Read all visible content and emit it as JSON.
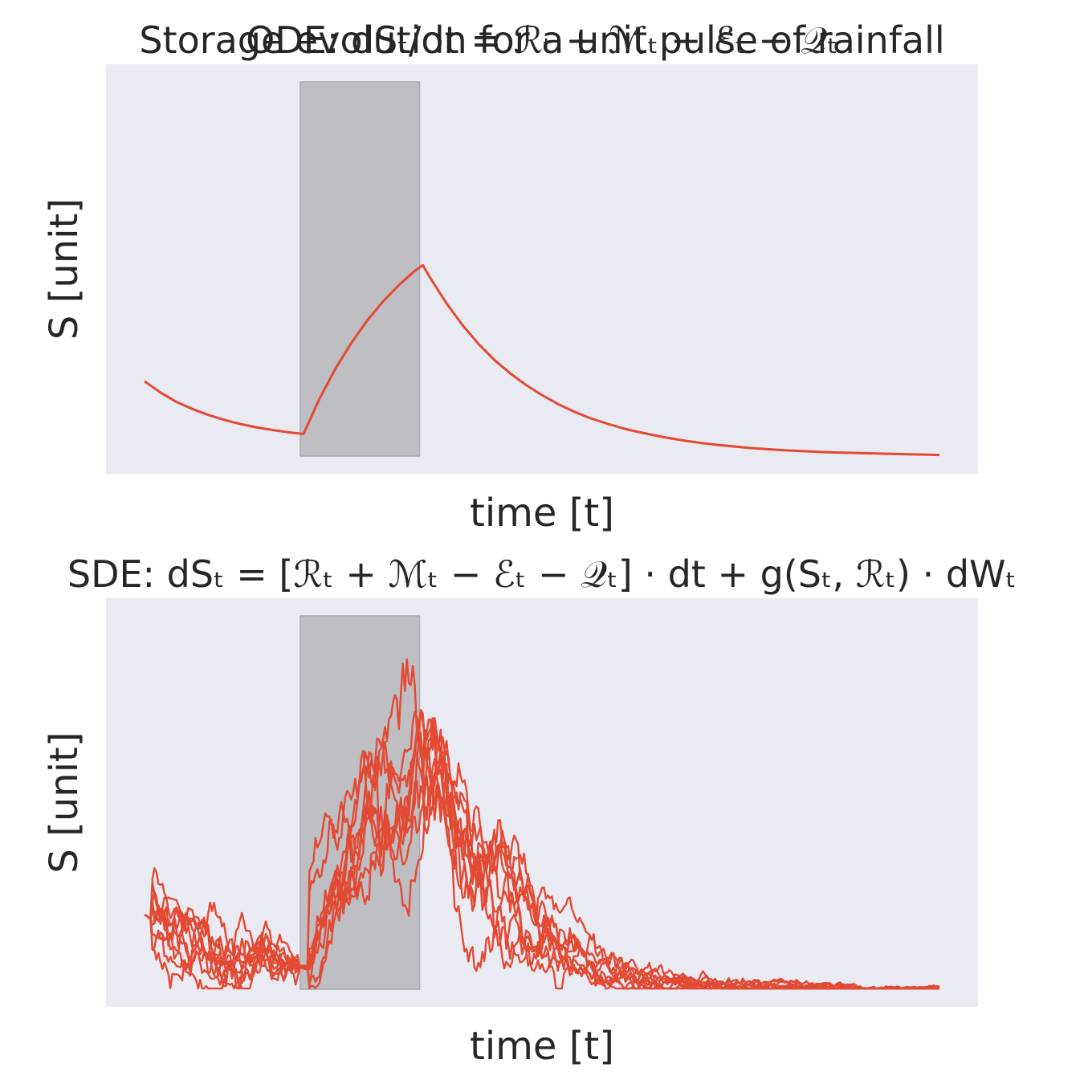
{
  "figure": {
    "suptitle": "Storage evolution for a unit pulse of rainfall",
    "background": "#ffffff",
    "axes_background": "#eaeaf2",
    "line_color": "#e24a33",
    "pulse_color": "#bebec3"
  },
  "chart_data": [
    {
      "type": "line",
      "title": "ODE: dSₜ/dt = ℛₜ + ℳₜ − ℰₜ − 𝒬ₜ",
      "xlabel": "time [t]",
      "ylabel": "S [unit]",
      "xlim": [
        0,
        100
      ],
      "ylim": [
        0,
        1.05
      ],
      "grid": false,
      "pulse": {
        "start": 20,
        "end": 35,
        "height": 1.0
      },
      "series": [
        {
          "x": [
            0,
            2,
            4,
            6,
            8,
            10,
            12,
            14,
            16,
            18,
            20,
            22,
            24,
            26,
            28,
            30,
            32,
            34,
            35,
            36,
            38,
            40,
            42,
            44,
            46,
            48,
            50,
            52,
            54,
            56,
            58,
            60,
            62,
            64,
            66,
            68,
            70,
            72,
            74,
            76,
            78,
            80,
            82,
            84,
            86,
            88,
            90,
            92,
            94,
            96,
            98,
            100
          ],
          "y": [
            0.2,
            0.17,
            0.145,
            0.126,
            0.11,
            0.097,
            0.086,
            0.077,
            0.07,
            0.064,
            0.059,
            0.153,
            0.233,
            0.302,
            0.362,
            0.413,
            0.457,
            0.495,
            0.51,
            0.474,
            0.408,
            0.35,
            0.3,
            0.257,
            0.221,
            0.19,
            0.163,
            0.139,
            0.119,
            0.102,
            0.088,
            0.075,
            0.065,
            0.056,
            0.048,
            0.041,
            0.035,
            0.03,
            0.026,
            0.022,
            0.019,
            0.016,
            0.014,
            0.012,
            0.01,
            0.009,
            0.008,
            0.007,
            0.006,
            0.005,
            0.004,
            0.003
          ]
        }
      ]
    },
    {
      "type": "line",
      "title": "SDE: dSₜ = [ℛₜ + ℳₜ − ℰₜ − 𝒬ₜ] · dt + g(Sₜ, ℛₜ) · dWₜ",
      "xlabel": "time [t]",
      "ylabel": "S [unit]",
      "xlim": [
        0,
        100
      ],
      "ylim": [
        0,
        1.05
      ],
      "grid": false,
      "pulse": {
        "start": 20,
        "end": 35,
        "height": 1.0
      },
      "ensemble": {
        "members": 10,
        "mean_x": [
          0,
          2,
          4,
          6,
          8,
          10,
          12,
          14,
          16,
          18,
          20,
          22,
          24,
          26,
          28,
          30,
          32,
          34,
          35,
          36,
          38,
          40,
          42,
          44,
          46,
          48,
          50,
          52,
          54,
          56,
          58,
          60,
          62,
          64,
          66,
          68,
          70,
          72,
          74,
          76,
          78,
          80,
          82,
          84,
          86,
          88,
          90,
          92,
          94,
          96,
          98,
          100
        ],
        "mean_y": [
          0.2,
          0.17,
          0.145,
          0.126,
          0.11,
          0.097,
          0.086,
          0.077,
          0.07,
          0.064,
          0.059,
          0.23,
          0.33,
          0.41,
          0.48,
          0.54,
          0.59,
          0.63,
          0.65,
          0.62,
          0.55,
          0.47,
          0.39,
          0.31,
          0.24,
          0.18,
          0.13,
          0.1,
          0.075,
          0.058,
          0.045,
          0.035,
          0.028,
          0.022,
          0.018,
          0.014,
          0.011,
          0.009,
          0.007,
          0.006,
          0.005,
          0.004,
          0.003,
          0.003,
          0.002,
          0.002,
          0.002,
          0.001,
          0.001,
          0.001,
          0.001,
          0.001
        ],
        "volatility": 0.02
      }
    }
  ]
}
